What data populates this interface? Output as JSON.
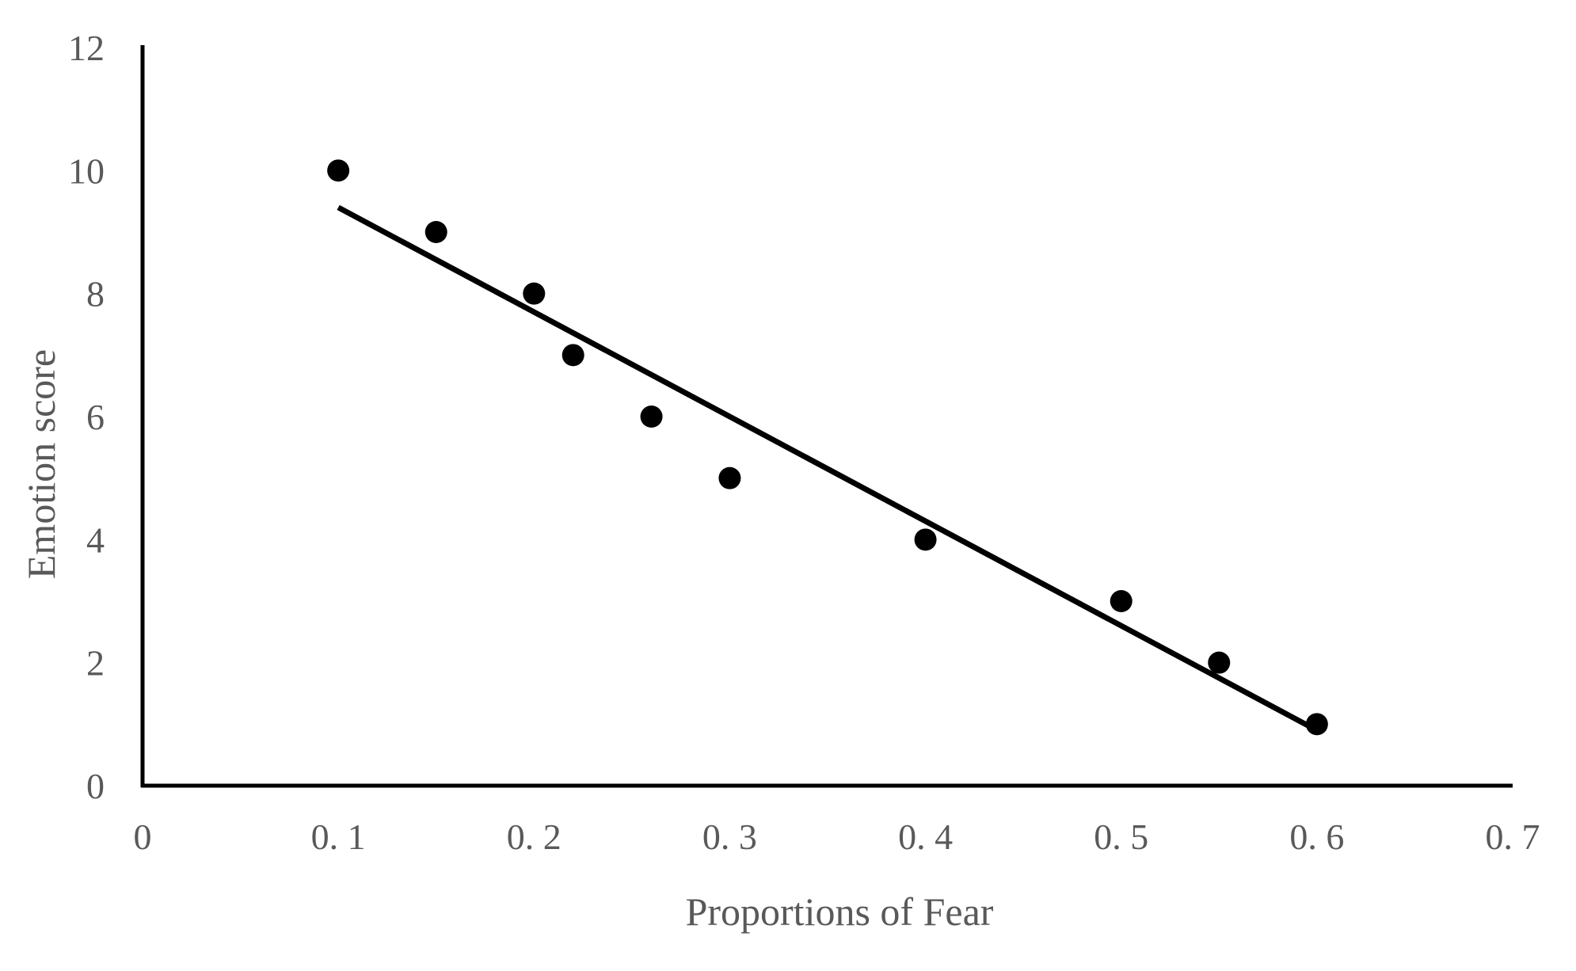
{
  "chart_data": {
    "type": "scatter",
    "title": "",
    "xlabel": "Proportions of Fear",
    "ylabel": "Emotion score",
    "xlim": [
      0,
      0.7
    ],
    "ylim": [
      0,
      12
    ],
    "x_ticks": [
      0,
      0.1,
      0.2,
      0.3,
      0.4,
      0.5,
      0.6,
      0.7
    ],
    "x_tick_labels": [
      "0",
      "0. 1",
      "0. 2",
      "0. 3",
      "0. 4",
      "0. 5",
      "0. 6",
      "0. 7"
    ],
    "y_ticks": [
      0,
      2,
      4,
      6,
      8,
      10,
      12
    ],
    "y_tick_labels": [
      "0",
      "2",
      "4",
      "6",
      "8",
      "10",
      "12"
    ],
    "grid": false,
    "legend": "none",
    "series": [
      {
        "x": [
          0.1,
          0.15,
          0.2,
          0.22,
          0.26,
          0.3,
          0.4,
          0.5,
          0.55,
          0.6
        ],
        "y": [
          10,
          9,
          8,
          7,
          6,
          5,
          4,
          3,
          2,
          1
        ]
      }
    ],
    "trendline": {
      "type": "linear",
      "x": [
        0.1,
        0.6
      ],
      "y": [
        9.4,
        0.9
      ]
    },
    "colors": {
      "points": "#000000",
      "trendline": "#000000",
      "axes": "#000000",
      "text": "#595959"
    }
  }
}
